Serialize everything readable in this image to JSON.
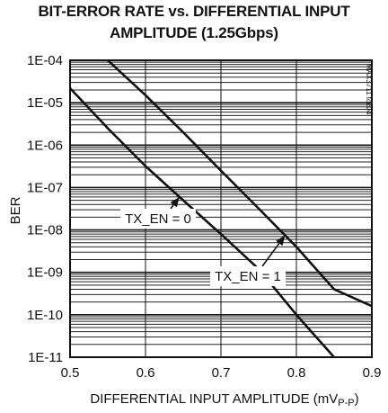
{
  "chart_data": {
    "type": "line",
    "title": [
      "BIT-ERROR RATE vs. DIFFERENTIAL INPUT",
      "AMPLITUDE (1.25Gbps)"
    ],
    "code": "MAX3711 toc04",
    "xlabel": "DIFFERENTIAL INPUT AMPLITUDE (mV",
    "xlabel_sub": "P-P",
    "xlabel_close": ")",
    "ylabel": "BER",
    "x_scale": "linear",
    "y_scale": "log",
    "xlim": [
      0.5,
      0.9
    ],
    "ylim": [
      1e-11,
      0.0001
    ],
    "x_ticks": [
      0.5,
      0.6,
      0.7,
      0.8,
      0.9
    ],
    "x_tick_labels": [
      "0.5",
      "0.6",
      "0.7",
      "0.8",
      "0.9"
    ],
    "y_ticks": [
      0.0001,
      1e-05,
      1e-06,
      1e-07,
      1e-08,
      1e-09,
      1e-10,
      1e-11
    ],
    "y_tick_labels": [
      "1E-04",
      "1E-05",
      "1E-06",
      "1E-07",
      "1E-08",
      "1E-09",
      "1E-10",
      "1E-11"
    ],
    "grid": {
      "x_major": true,
      "y_major": true,
      "y_minor": true
    },
    "series": [
      {
        "name": "TX_EN = 0",
        "x": [
          0.5,
          0.55,
          0.6,
          0.65,
          0.7,
          0.75,
          0.8,
          0.85
        ],
        "y": [
          2.2e-05,
          2.5e-06,
          3.2e-07,
          5e-08,
          8e-09,
          1.2e-09,
          1e-10,
          1e-11
        ]
      },
      {
        "name": "TX_EN = 1",
        "x": [
          0.55,
          0.6,
          0.65,
          0.7,
          0.75,
          0.8,
          0.85,
          0.9
        ],
        "y": [
          0.0001,
          1.5e-05,
          2e-06,
          2.5e-07,
          3.2e-08,
          4e-09,
          4e-10,
          1.6e-10
        ]
      }
    ],
    "annotations": [
      {
        "text": "TX_EN = 0",
        "series": 0,
        "point_x": 0.645
      },
      {
        "text": "TX_EN = 1",
        "series": 1,
        "point_x": 0.785
      }
    ]
  }
}
